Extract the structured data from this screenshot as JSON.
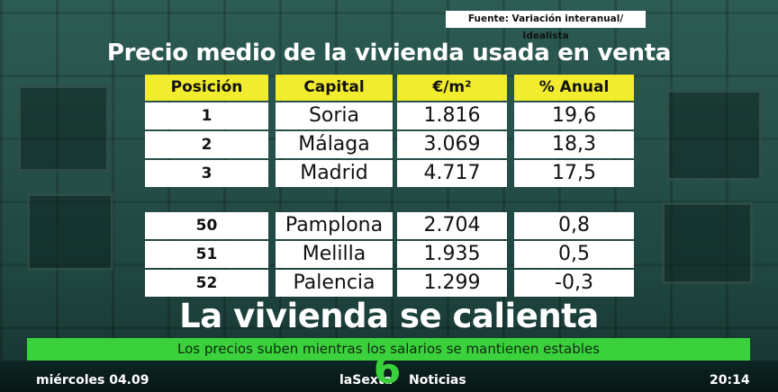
{
  "source": "Fuente: Variación interanual/ Idealista",
  "title": "Precio medio de la vivienda usada en venta",
  "table": {
    "headers": [
      "Posición",
      "Capital",
      "€/m²",
      "% Anual"
    ],
    "rows": [
      [
        "1",
        "Soria",
        "1.816",
        "19,6"
      ],
      [
        "2",
        "Málaga",
        "3.069",
        "18,3"
      ],
      [
        "3",
        "Madrid",
        "4.717",
        "17,5"
      ],
      [
        "50",
        "Pamplona",
        "2.704",
        "0,8"
      ],
      [
        "51",
        "Melilla",
        "1.935",
        "0,5"
      ],
      [
        "52",
        "Palencia",
        "1.299",
        "-0,3"
      ]
    ]
  },
  "headline": "La vivienda se calienta",
  "ticker": "Los precios suben mientras los salarios se mantienen estables",
  "footer": {
    "date": "miércoles 04.09",
    "channel": "laSexta",
    "logo": "6",
    "program": "Noticias",
    "time": "20:14"
  },
  "colors": {
    "accent_yellow": "#f1ec2e",
    "accent_green": "#3bd13c"
  }
}
